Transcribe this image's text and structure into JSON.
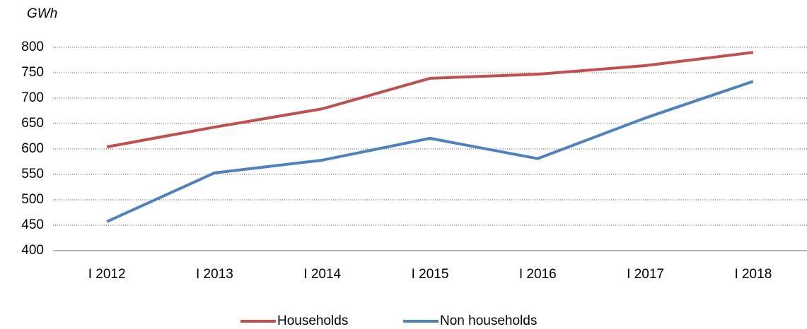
{
  "chart_data": {
    "type": "line",
    "y_label": "GWh",
    "categories": [
      "I 2012",
      "I 2013",
      "I 2014",
      "I 2015",
      "I 2016",
      "I 2017",
      "I 2018"
    ],
    "series": [
      {
        "name": "Households",
        "color": "#c0504d",
        "values": [
          604,
          643,
          679,
          739,
          747,
          764,
          790
        ]
      },
      {
        "name": "Non households",
        "color": "#4f81bd",
        "values": [
          457,
          553,
          578,
          621,
          581,
          661,
          733
        ]
      }
    ],
    "ylim": [
      400,
      800
    ],
    "yticks": [
      400,
      450,
      500,
      550,
      600,
      650,
      700,
      750,
      800
    ],
    "grid": true,
    "legend": "bottom"
  }
}
